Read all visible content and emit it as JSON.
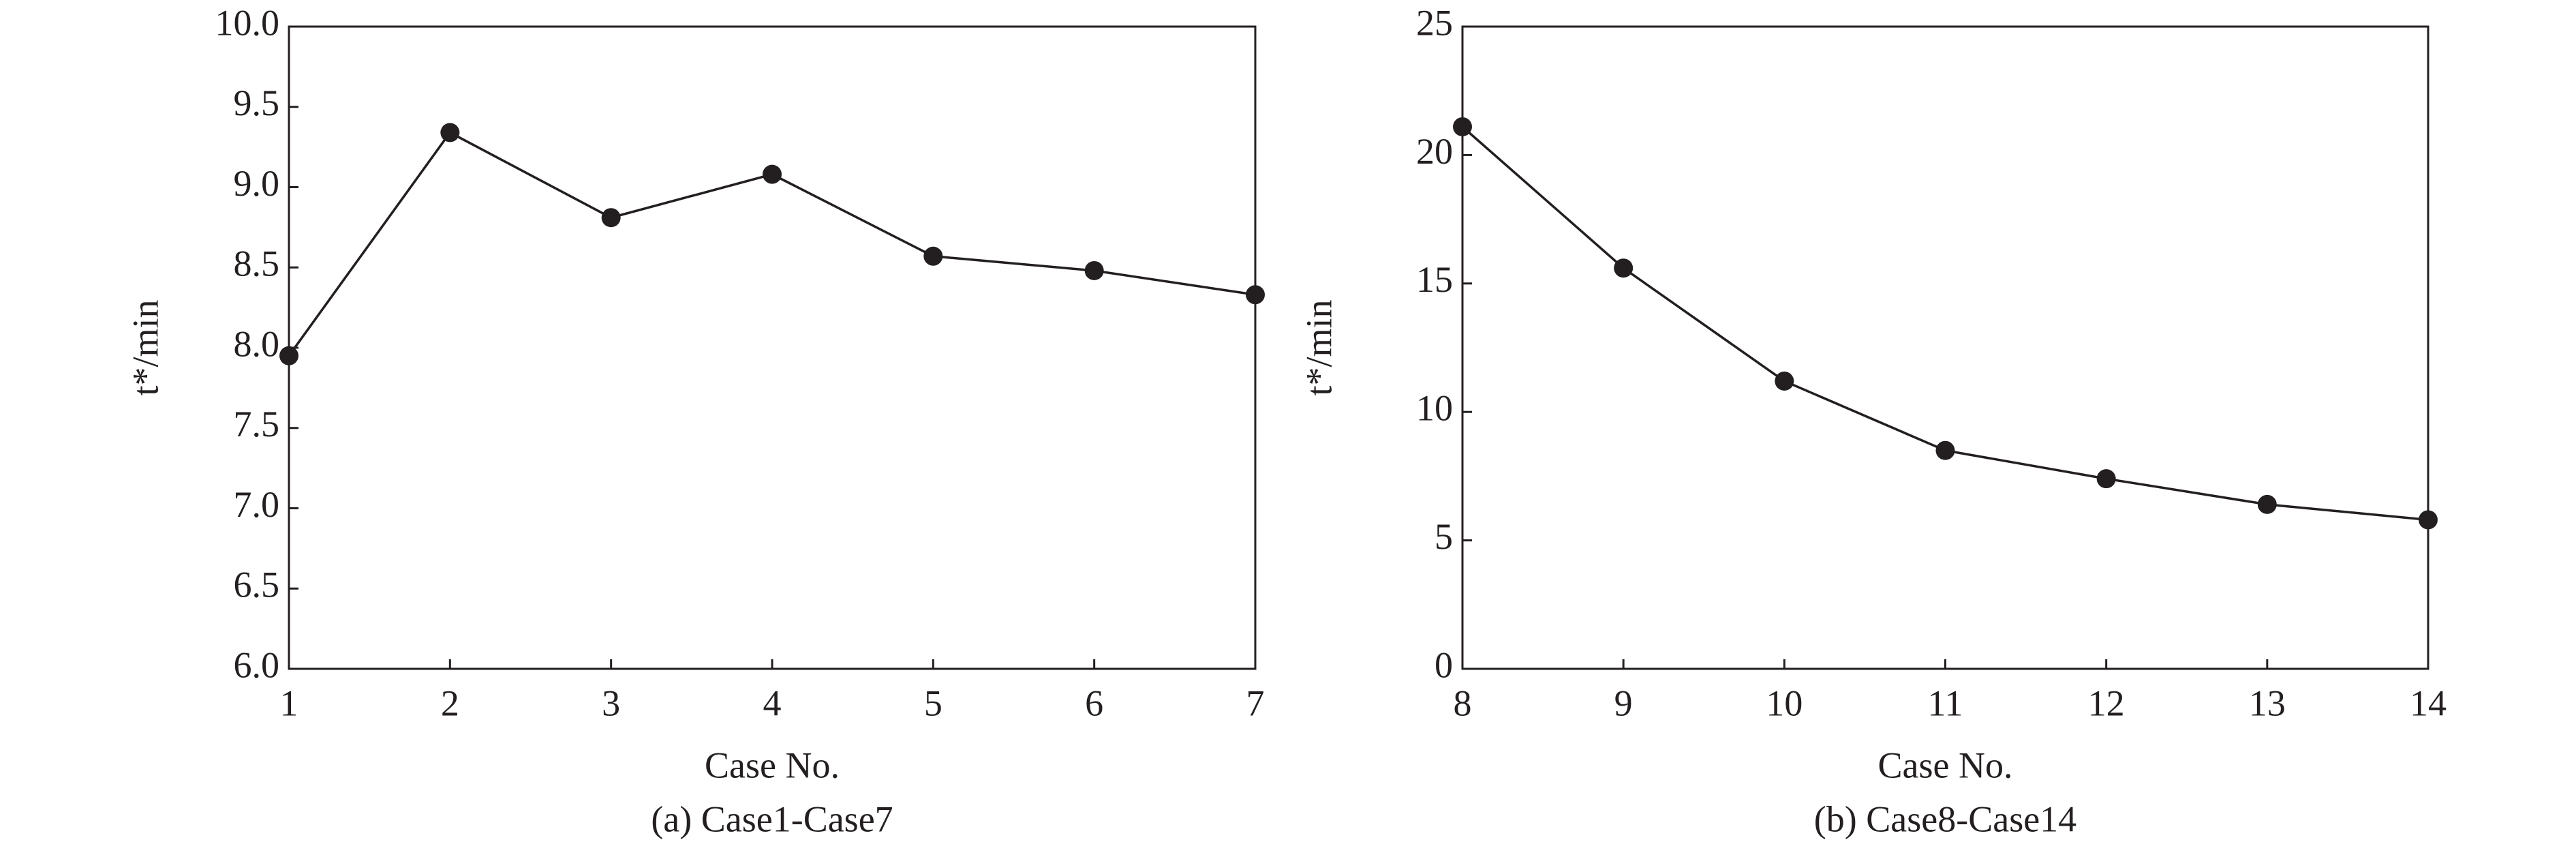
{
  "chart_data": [
    {
      "type": "line",
      "x": [
        1,
        2,
        3,
        4,
        5,
        6,
        7
      ],
      "values": [
        7.95,
        9.34,
        8.81,
        9.08,
        8.57,
        8.48,
        8.33
      ],
      "color": "#231f20",
      "xlim": [
        1,
        7
      ],
      "xticks": [
        1,
        2,
        3,
        4,
        5,
        6,
        7
      ],
      "ylim": [
        6,
        10
      ],
      "yticks": [
        {
          "value": 6,
          "label": "6.0"
        },
        6.5,
        {
          "value": 7,
          "label": "7.0"
        },
        7.5,
        {
          "value": 8,
          "label": "8.0"
        },
        8.5,
        {
          "value": 9,
          "label": "9.0"
        },
        9.5,
        {
          "value": 10,
          "label": "10.0"
        }
      ],
      "x_label": "Case No.",
      "y_label": "t*/min",
      "caption": "(a) Case1-Case7"
    },
    {
      "type": "line",
      "x": [
        8,
        9,
        10,
        11,
        12,
        13,
        14
      ],
      "values": [
        21.1,
        15.6,
        11.2,
        8.5,
        7.4,
        6.4,
        5.8
      ],
      "color": "#231f20",
      "xlim": [
        8,
        14
      ],
      "xticks": [
        8,
        9,
        10,
        11,
        12,
        13,
        14
      ],
      "ylim": [
        0,
        25
      ],
      "yticks": [
        0,
        5,
        10,
        15,
        20,
        25
      ],
      "x_label": "Case No.",
      "y_label": "t*/min",
      "caption": "(b) Case8-Case14"
    }
  ]
}
